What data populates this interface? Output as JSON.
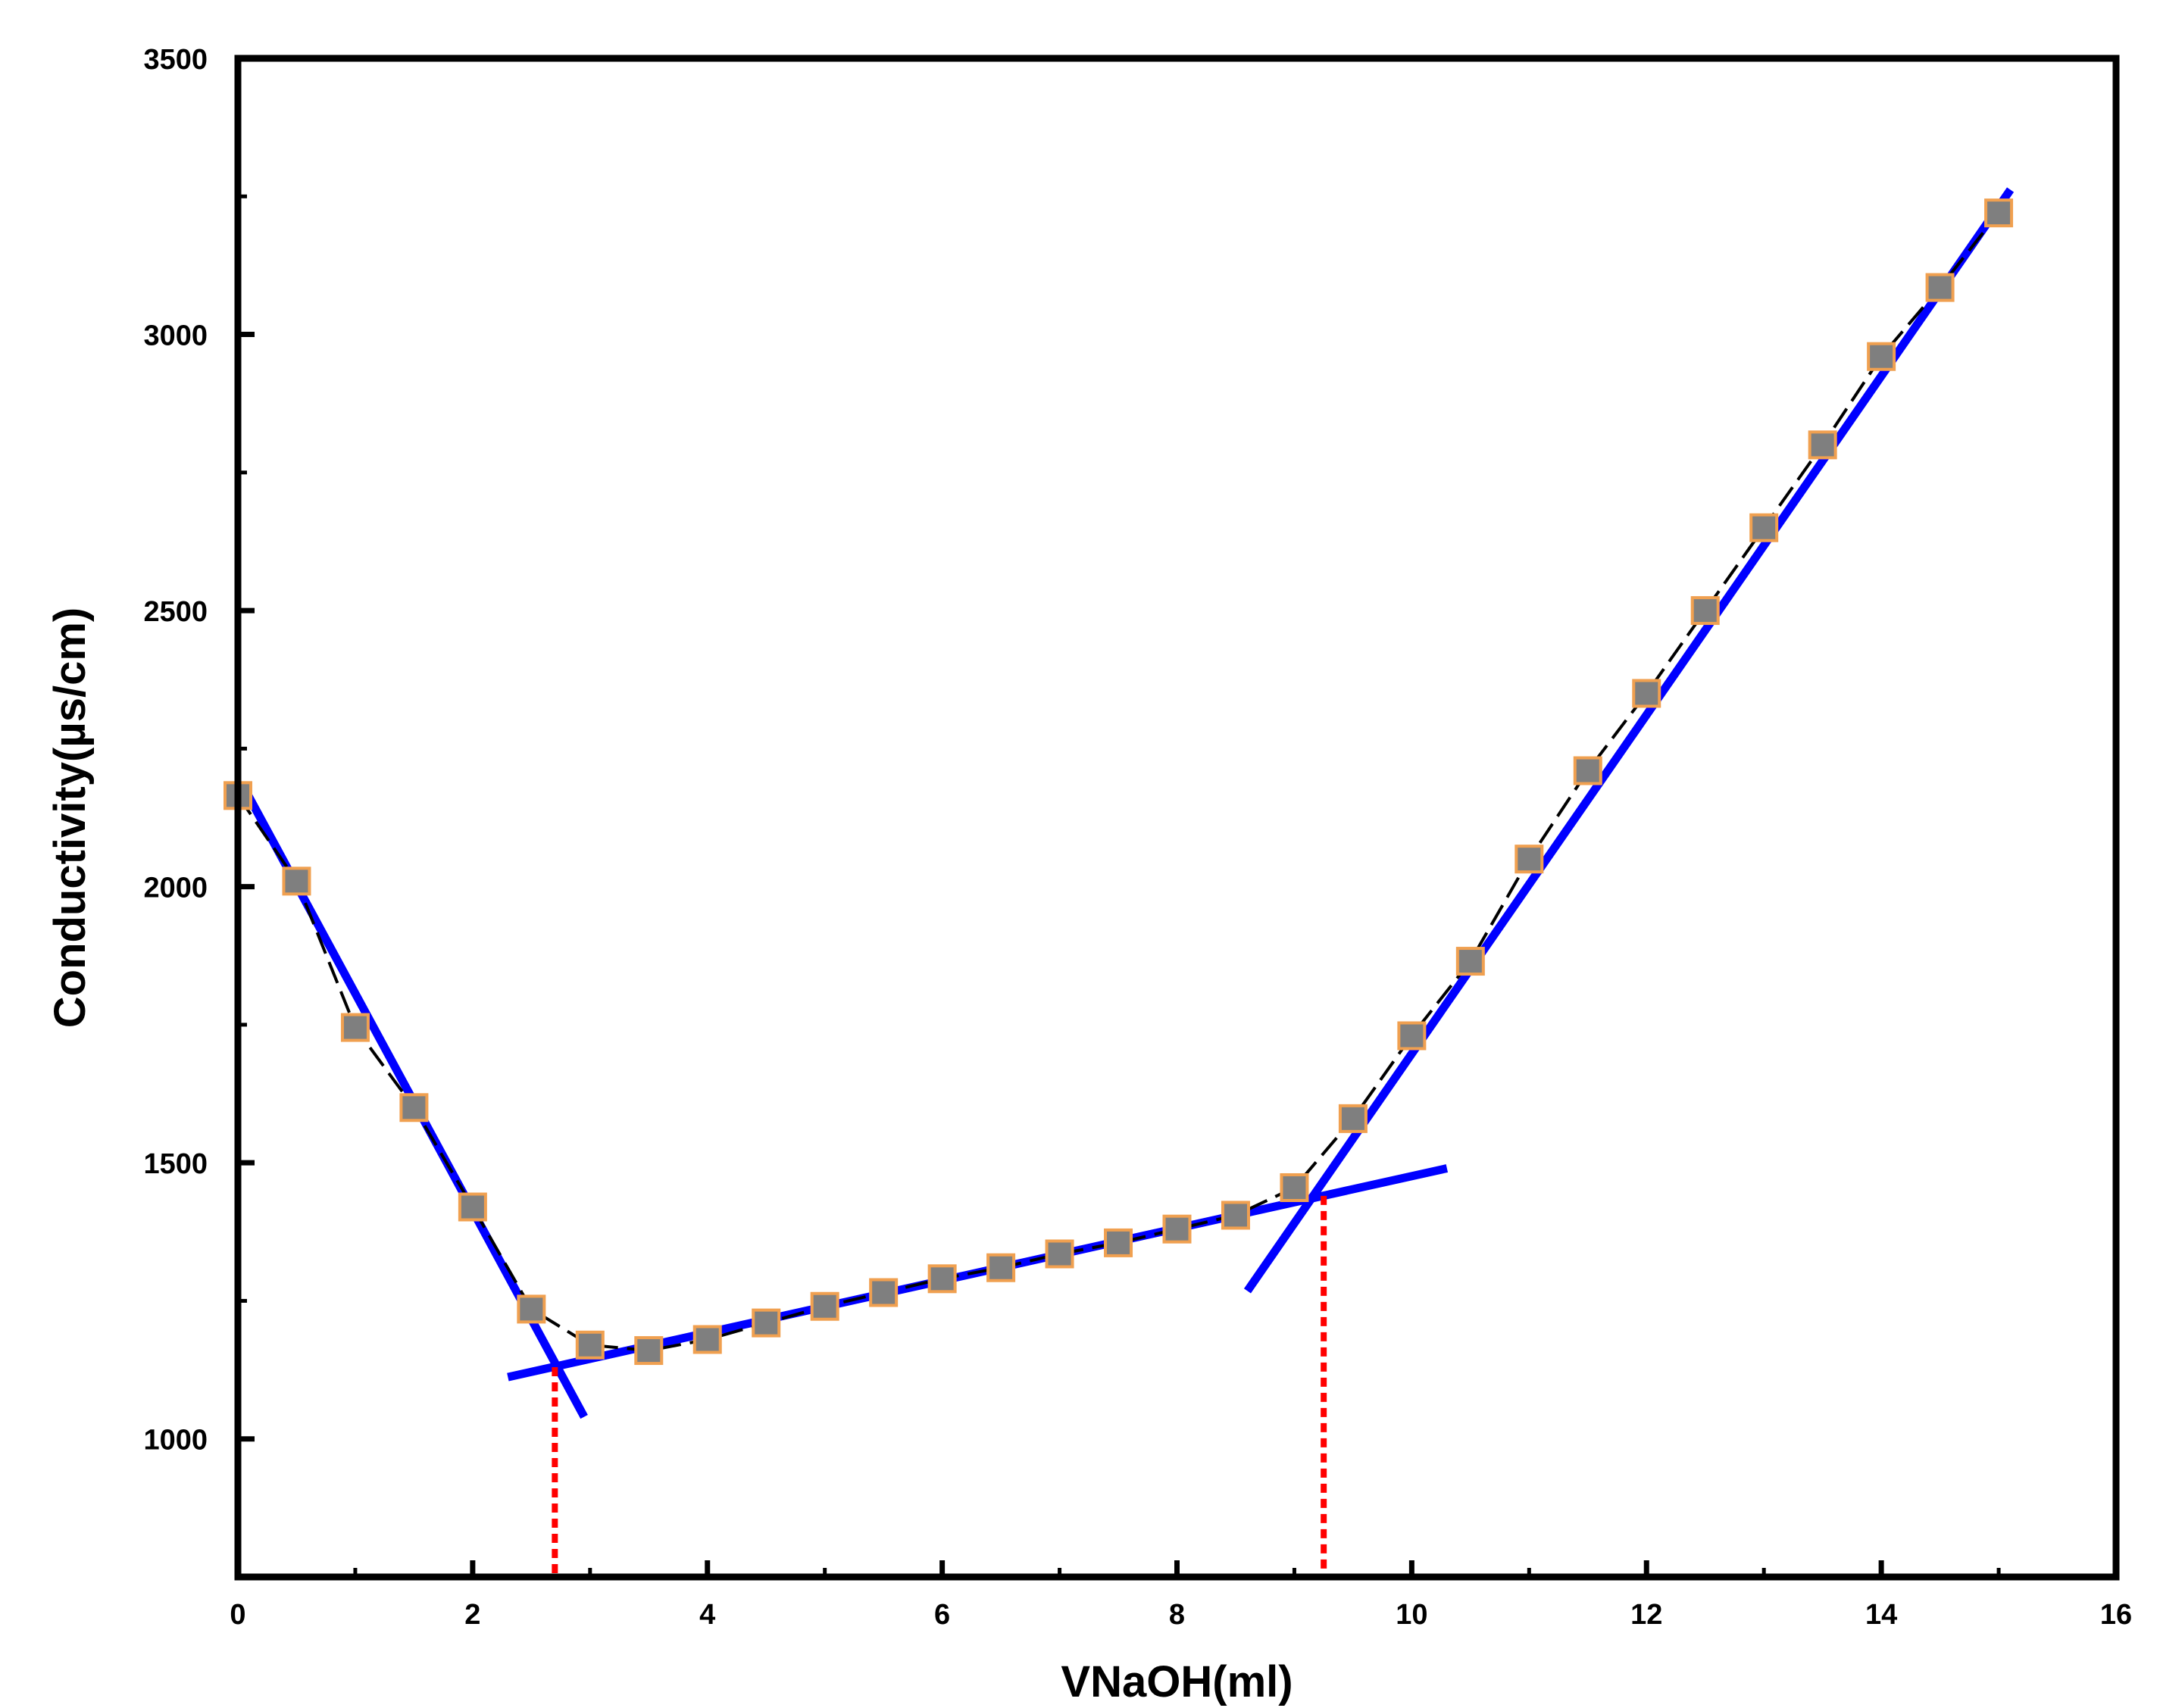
{
  "chart_data": {
    "type": "scatter",
    "title": "",
    "xlabel": "VNaOH(ml)",
    "ylabel": "Conductivity(µs/cm)",
    "xlim": [
      0,
      16
    ],
    "ylim": [
      750,
      3500
    ],
    "x_ticks": [
      0,
      2,
      4,
      6,
      8,
      10,
      12,
      14,
      16
    ],
    "y_ticks": [
      1000,
      1500,
      2000,
      2500,
      3000,
      3500
    ],
    "grid": false,
    "colors": {
      "marker_fill": "#7f7f7f",
      "marker_edge": "#f0a050",
      "connector": "#000000",
      "fit_lines": "#0000ff",
      "equivalence_lines": "#ff0000"
    },
    "series": [
      {
        "x": [
          0,
          0.5,
          1,
          1.5,
          2,
          2.5,
          3,
          3.5,
          4,
          4.5,
          5,
          5.5,
          6,
          6.5,
          7,
          7.5,
          8,
          8.5,
          9,
          9.5,
          10,
          10.5,
          11,
          11.5,
          12,
          12.5,
          13,
          13.5,
          14,
          14.5,
          15
        ],
        "y": [
          2165,
          2010,
          1745,
          1600,
          1420,
          1235,
          1170,
          1160,
          1180,
          1210,
          1240,
          1265,
          1290,
          1310,
          1335,
          1355,
          1380,
          1405,
          1455,
          1580,
          1730,
          1865,
          2050,
          2210,
          2350,
          2500,
          2650,
          2800,
          2960,
          3085,
          3220
        ]
      }
    ],
    "fit_lines": [
      {
        "x": [
          0.05,
          2.95
        ],
        "y": [
          2180,
          1040
        ]
      },
      {
        "x": [
          2.3,
          10.3
        ],
        "y": [
          1112,
          1490
        ]
      },
      {
        "x": [
          8.6,
          15.1
        ],
        "y": [
          1268,
          3262
        ]
      }
    ],
    "equivalence_points": [
      {
        "x": 2.7,
        "y": 1130
      },
      {
        "x": 9.25,
        "y": 1440
      }
    ]
  }
}
